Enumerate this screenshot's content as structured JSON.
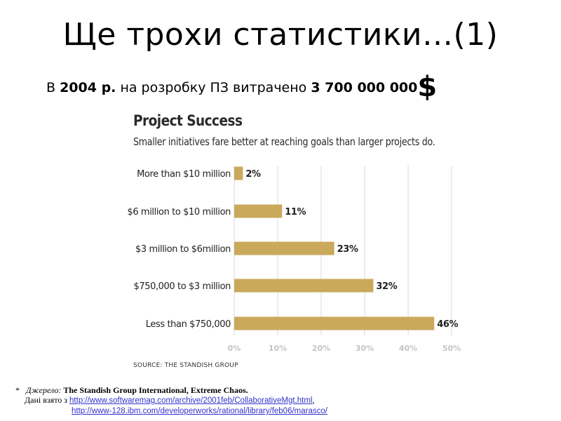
{
  "slide": {
    "title": "Ще трохи статистики…(1)",
    "subtitle": {
      "prefix": "В ",
      "year": "2004 р.",
      "middle": " на розробку ПЗ витрачено ",
      "amount": "3 700 000 000",
      "currency": "$"
    }
  },
  "chart_data": {
    "type": "bar",
    "orientation": "horizontal",
    "title": "Project Success",
    "subtitle": "Smaller initiatives fare better at reaching goals than larger projects do.",
    "categories": [
      "More than $10 million",
      "$6 million to $10 million",
      "$3 million to $6million",
      "$750,000 to $3 million",
      "Less than $750,000"
    ],
    "values": [
      2,
      11,
      23,
      32,
      46
    ],
    "data_labels": [
      "2%",
      "11%",
      "23%",
      "32%",
      "46%"
    ],
    "xlim": [
      0,
      50
    ],
    "x_ticks": [
      "0%",
      "10%",
      "20%",
      "30%",
      "40%",
      "50%"
    ],
    "grid": true,
    "bar_color": "#caa95b",
    "source": "SOURCE: THE STANDISH GROUP"
  },
  "footnote": {
    "marker": "*",
    "label": "Джерело:",
    "source": "The Standish Group International, Extreme Chaos.",
    "data_prefix": "Дані взято з ",
    "link1": "http://www.softwaremag.com/archive/2001feb/CollaborativeMgt.html",
    "separator": ",",
    "link2": "http://www-128.ibm.com/developerworks/rational/library/feb06/marasco/"
  }
}
